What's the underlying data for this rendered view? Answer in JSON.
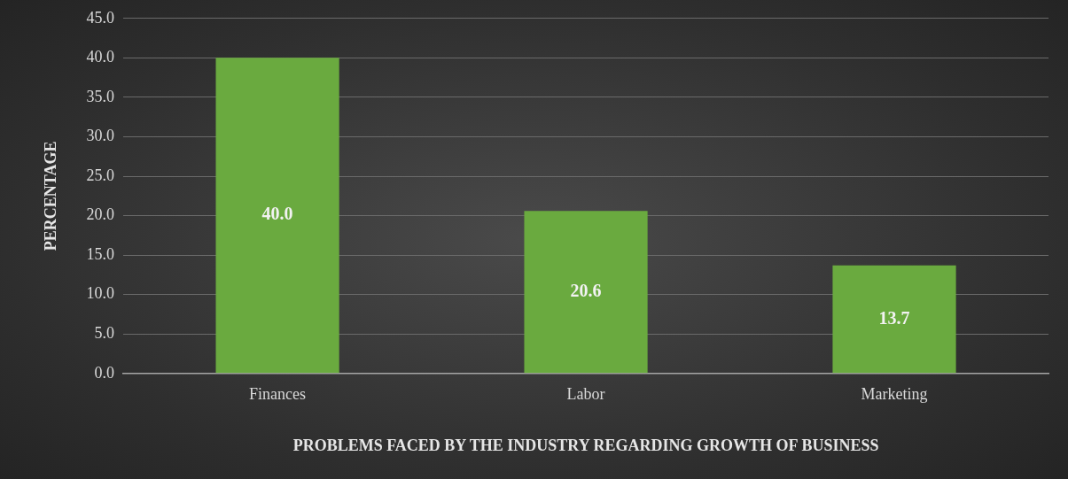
{
  "chart_data": {
    "type": "bar",
    "xlabel": "PROBLEMS FACED BY THE INDUSTRY REGARDING GROWTH OF BUSINESS",
    "ylabel": "PERCENTAGE",
    "categories": [
      "Finances",
      "Labor",
      "Marketing"
    ],
    "values": [
      40.0,
      20.6,
      13.7
    ],
    "value_labels": [
      "40.0",
      "20.6",
      "13.7"
    ],
    "color": "#6aaa3f",
    "ylim": [
      0,
      45
    ],
    "yticks": [
      {
        "value": 0,
        "label": "0.0"
      },
      {
        "value": 5,
        "label": "5.0"
      },
      {
        "value": 10,
        "label": "10.0"
      },
      {
        "value": 15,
        "label": "15.0"
      },
      {
        "value": 20,
        "label": "20.0"
      },
      {
        "value": 25,
        "label": "25.0"
      },
      {
        "value": 30,
        "label": "30.0"
      },
      {
        "value": 35,
        "label": "35.0"
      },
      {
        "value": 40,
        "label": "40.0"
      },
      {
        "value": 45,
        "label": "45.0"
      }
    ],
    "grid": "y"
  }
}
